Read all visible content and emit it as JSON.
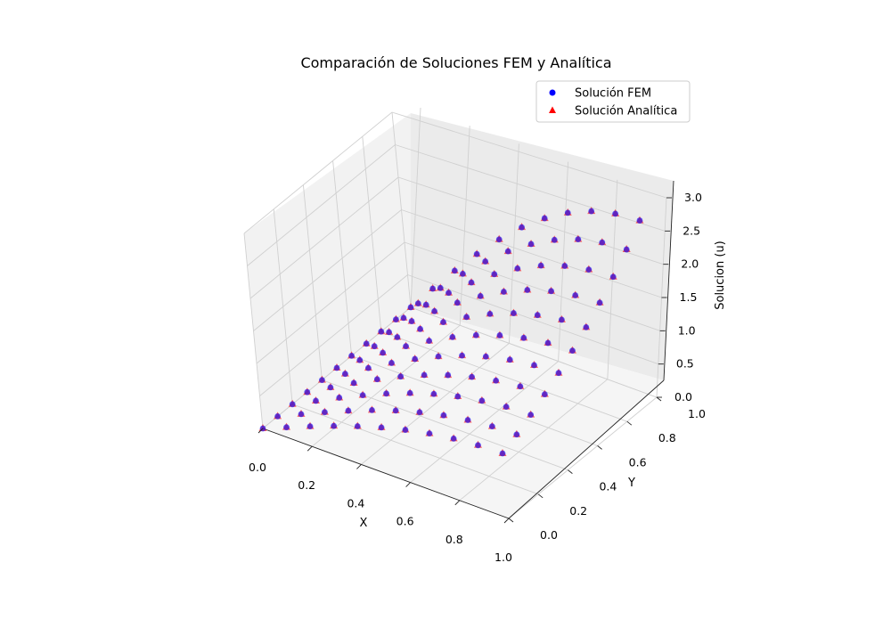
{
  "chart_data": {
    "type": "scatter",
    "projection": "3d",
    "title": "Comparación de Soluciones FEM y Analítica",
    "xlabel": "X",
    "ylabel": "Y",
    "zlabel": "Solucion (u)",
    "xlim": [
      0,
      1
    ],
    "ylim": [
      0,
      1
    ],
    "zlim": [
      0,
      3
    ],
    "x_ticks": [
      "0.0",
      "0.2",
      "0.4",
      "0.6",
      "0.8",
      "1.0"
    ],
    "y_ticks": [
      "0.0",
      "0.2",
      "0.4",
      "0.6",
      "0.8",
      "1.0"
    ],
    "z_ticks": [
      "0.0",
      "0.5",
      "1.0",
      "1.5",
      "2.0",
      "2.5",
      "3.0"
    ],
    "grid": true,
    "legend_position": "top-right",
    "grid_resolution": 11,
    "domain": [
      0,
      1
    ],
    "series": [
      {
        "name": "Solución FEM",
        "marker": "circle",
        "color": "#0000ff"
      },
      {
        "name": "Solución Analítica",
        "marker": "triangle",
        "color": "#ff0000"
      }
    ]
  }
}
